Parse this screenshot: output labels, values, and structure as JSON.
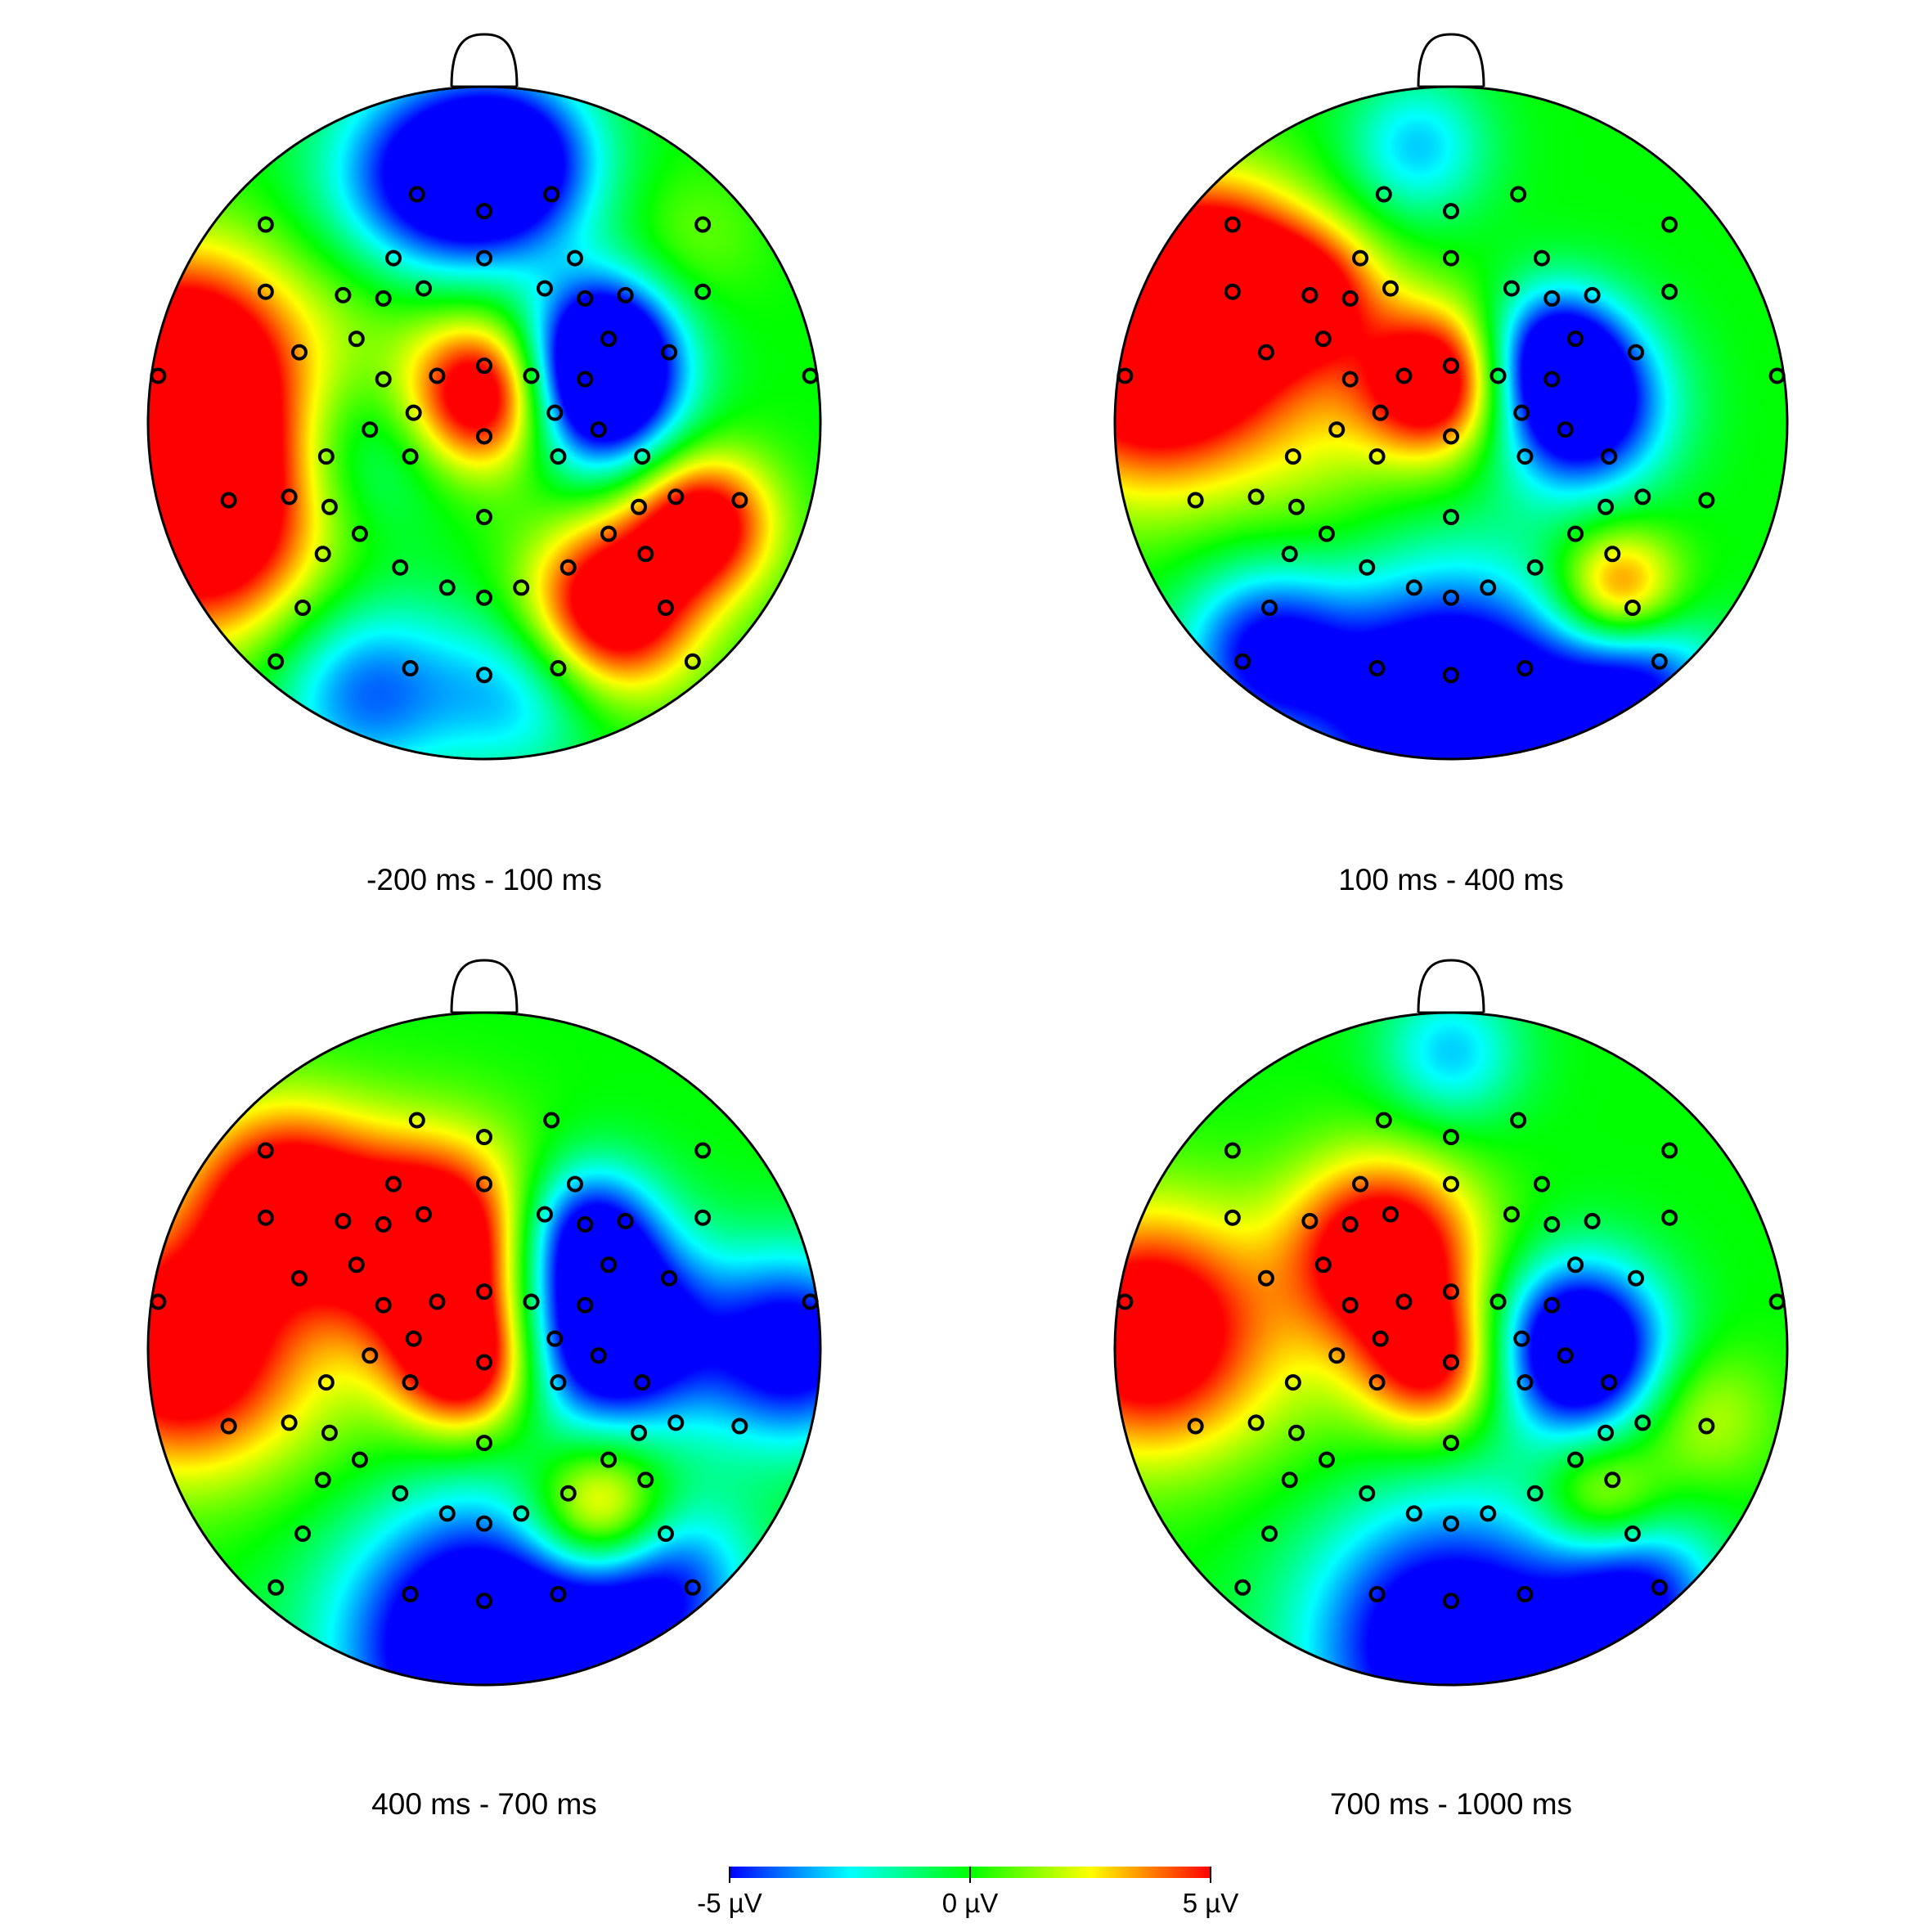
{
  "chart_data": {
    "type": "heatmap",
    "subtype": "eeg-topographic-map",
    "colorscale": {
      "colors": [
        "#0000ff",
        "#00ffff",
        "#00ff00",
        "#ffff00",
        "#ff0000"
      ],
      "range": [
        -5,
        5
      ],
      "tick_labels": [
        "-5 µV",
        "0 µV",
        "5 µV"
      ]
    },
    "electrodes": [
      {
        "x": -0.2,
        "y": 0.68
      },
      {
        "x": 0.0,
        "y": 0.63
      },
      {
        "x": 0.2,
        "y": 0.68
      },
      {
        "x": -0.65,
        "y": 0.59
      },
      {
        "x": 0.65,
        "y": 0.59
      },
      {
        "x": -0.27,
        "y": 0.49
      },
      {
        "x": 0.0,
        "y": 0.49
      },
      {
        "x": 0.27,
        "y": 0.49
      },
      {
        "x": -0.65,
        "y": 0.39
      },
      {
        "x": -0.42,
        "y": 0.38
      },
      {
        "x": -0.3,
        "y": 0.37
      },
      {
        "x": -0.18,
        "y": 0.4
      },
      {
        "x": 0.18,
        "y": 0.4
      },
      {
        "x": 0.3,
        "y": 0.37
      },
      {
        "x": 0.42,
        "y": 0.38
      },
      {
        "x": 0.65,
        "y": 0.39
      },
      {
        "x": -0.55,
        "y": 0.21
      },
      {
        "x": -0.38,
        "y": 0.25
      },
      {
        "x": 0.37,
        "y": 0.25
      },
      {
        "x": 0.55,
        "y": 0.21
      },
      {
        "x": -0.97,
        "y": 0.14
      },
      {
        "x": -0.3,
        "y": 0.13
      },
      {
        "x": -0.14,
        "y": 0.14
      },
      {
        "x": 0.0,
        "y": 0.17
      },
      {
        "x": 0.14,
        "y": 0.14
      },
      {
        "x": 0.3,
        "y": 0.13
      },
      {
        "x": 0.97,
        "y": 0.14
      },
      {
        "x": -0.21,
        "y": 0.03
      },
      {
        "x": 0.21,
        "y": 0.03
      },
      {
        "x": -0.34,
        "y": -0.02
      },
      {
        "x": 0.34,
        "y": -0.02
      },
      {
        "x": 0.0,
        "y": -0.04
      },
      {
        "x": -0.47,
        "y": -0.1
      },
      {
        "x": -0.22,
        "y": -0.1
      },
      {
        "x": 0.22,
        "y": -0.1
      },
      {
        "x": 0.47,
        "y": -0.1
      },
      {
        "x": -0.76,
        "y": -0.23
      },
      {
        "x": -0.58,
        "y": -0.22
      },
      {
        "x": -0.46,
        "y": -0.25
      },
      {
        "x": 0.46,
        "y": -0.25
      },
      {
        "x": 0.57,
        "y": -0.22
      },
      {
        "x": 0.76,
        "y": -0.23
      },
      {
        "x": 0.0,
        "y": -0.28
      },
      {
        "x": -0.37,
        "y": -0.33
      },
      {
        "x": 0.37,
        "y": -0.33
      },
      {
        "x": -0.48,
        "y": -0.39
      },
      {
        "x": -0.25,
        "y": -0.43
      },
      {
        "x": 0.25,
        "y": -0.43
      },
      {
        "x": 0.48,
        "y": -0.39
      },
      {
        "x": -0.11,
        "y": -0.49
      },
      {
        "x": 0.11,
        "y": -0.49
      },
      {
        "x": 0.0,
        "y": -0.52
      },
      {
        "x": -0.54,
        "y": -0.55
      },
      {
        "x": 0.54,
        "y": -0.55
      },
      {
        "x": -0.62,
        "y": -0.71
      },
      {
        "x": -0.22,
        "y": -0.73
      },
      {
        "x": 0.0,
        "y": -0.75
      },
      {
        "x": 0.22,
        "y": -0.73
      },
      {
        "x": 0.62,
        "y": -0.71
      }
    ],
    "maps": [
      {
        "caption": "-200 ms - 100 ms",
        "sources": [
          {
            "x": -0.9,
            "y": 0.15,
            "v": 8,
            "s": 0.25
          },
          {
            "x": -0.83,
            "y": -0.3,
            "v": 7,
            "s": 0.25
          },
          {
            "x": -0.15,
            "y": 0.72,
            "v": -6,
            "s": 0.22
          },
          {
            "x": 0.1,
            "y": 0.78,
            "v": -5,
            "s": 0.18
          },
          {
            "x": 0.0,
            "y": 0.08,
            "v": 7,
            "s": 0.16
          },
          {
            "x": 0.34,
            "y": 0.08,
            "v": -7,
            "s": 0.17
          },
          {
            "x": 0.36,
            "y": 0.25,
            "v": -5,
            "s": 0.15
          },
          {
            "x": 0.38,
            "y": -0.55,
            "v": 7,
            "s": 0.18
          },
          {
            "x": 0.65,
            "y": -0.3,
            "v": 6,
            "s": 0.15
          },
          {
            "x": -0.35,
            "y": -0.1,
            "v": -2,
            "s": 0.18
          },
          {
            "x": -0.35,
            "y": -0.8,
            "v": -4,
            "s": 0.2
          },
          {
            "x": 0.1,
            "y": -0.8,
            "v": -3,
            "s": 0.18
          },
          {
            "x": -0.3,
            "y": 0.35,
            "v": 1,
            "s": 0.2
          },
          {
            "x": 0.62,
            "y": 0.55,
            "v": 1,
            "s": 0.15
          }
        ]
      },
      {
        "caption": "100 ms - 400 ms",
        "sources": [
          {
            "x": -0.88,
            "y": 0.2,
            "v": 8,
            "s": 0.27
          },
          {
            "x": -0.7,
            "y": 0.45,
            "v": 5,
            "s": 0.2
          },
          {
            "x": -0.4,
            "y": 0.38,
            "v": 4,
            "s": 0.15
          },
          {
            "x": -0.05,
            "y": 0.12,
            "v": 7,
            "s": 0.16
          },
          {
            "x": 0.38,
            "y": 0.05,
            "v": -7,
            "s": 0.18
          },
          {
            "x": 0.3,
            "y": 0.22,
            "v": -4,
            "s": 0.14
          },
          {
            "x": 0.0,
            "y": -0.85,
            "v": -8,
            "s": 0.28
          },
          {
            "x": -0.55,
            "y": -0.68,
            "v": -5,
            "s": 0.18
          },
          {
            "x": 0.55,
            "y": -0.8,
            "v": -5,
            "s": 0.18
          },
          {
            "x": 0.5,
            "y": -0.5,
            "v": 5,
            "s": 0.13
          },
          {
            "x": -0.1,
            "y": 0.82,
            "v": -3,
            "s": 0.15
          },
          {
            "x": -0.4,
            "y": 0.0,
            "v": 1,
            "s": 0.18
          },
          {
            "x": -0.4,
            "y": -0.3,
            "v": 0.5,
            "s": 0.18
          }
        ]
      },
      {
        "caption": "400 ms - 700 ms",
        "sources": [
          {
            "x": -0.9,
            "y": 0.0,
            "v": 7,
            "s": 0.25
          },
          {
            "x": -0.6,
            "y": 0.45,
            "v": 6,
            "s": 0.2
          },
          {
            "x": -0.15,
            "y": 0.3,
            "v": 8,
            "s": 0.22
          },
          {
            "x": -0.05,
            "y": -0.05,
            "v": 6,
            "s": 0.15
          },
          {
            "x": 0.37,
            "y": 0.05,
            "v": -8,
            "s": 0.2
          },
          {
            "x": 0.3,
            "y": 0.35,
            "v": -5,
            "s": 0.15
          },
          {
            "x": 0.92,
            "y": 0.0,
            "v": -6,
            "s": 0.2
          },
          {
            "x": 0.0,
            "y": -0.88,
            "v": -8,
            "s": 0.3
          },
          {
            "x": 0.5,
            "y": -0.7,
            "v": -5,
            "s": 0.2
          },
          {
            "x": 0.35,
            "y": -0.5,
            "v": 6,
            "s": 0.15
          },
          {
            "x": -0.45,
            "y": -0.25,
            "v": 0.5,
            "s": 0.2
          }
        ]
      },
      {
        "caption": "700 ms - 1000 ms",
        "sources": [
          {
            "x": -0.9,
            "y": 0.05,
            "v": 7,
            "s": 0.25
          },
          {
            "x": -0.2,
            "y": 0.28,
            "v": 7,
            "s": 0.2
          },
          {
            "x": -0.05,
            "y": -0.05,
            "v": 5,
            "s": 0.15
          },
          {
            "x": 0.38,
            "y": 0.0,
            "v": -8,
            "s": 0.18
          },
          {
            "x": 0.0,
            "y": -0.88,
            "v": -7,
            "s": 0.3
          },
          {
            "x": 0.55,
            "y": -0.75,
            "v": -5,
            "s": 0.18
          },
          {
            "x": 0.45,
            "y": -0.45,
            "v": 3,
            "s": 0.13
          },
          {
            "x": 0.75,
            "y": -0.2,
            "v": 2,
            "s": 0.15
          },
          {
            "x": 0.0,
            "y": 0.88,
            "v": -3,
            "s": 0.15
          },
          {
            "x": -0.4,
            "y": -0.2,
            "v": 0.5,
            "s": 0.2
          }
        ]
      }
    ]
  }
}
